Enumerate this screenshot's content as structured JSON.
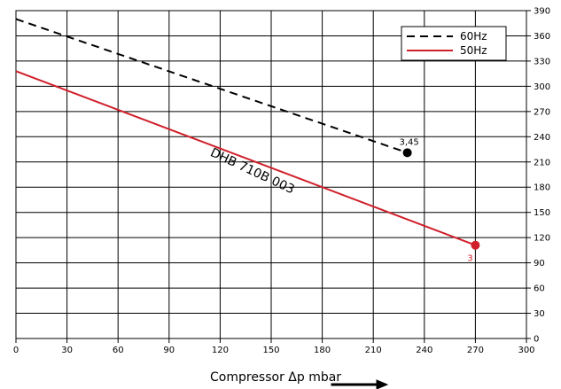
{
  "chart_data": {
    "type": "line",
    "title": "",
    "xlabel": "Compressor  Δp  mbar",
    "ylabel": "",
    "xlim": [
      0,
      300
    ],
    "ylim": [
      0,
      390
    ],
    "x_ticks": [
      0,
      30,
      60,
      90,
      120,
      150,
      180,
      210,
      240,
      270,
      300
    ],
    "y_ticks": [
      0,
      30,
      60,
      90,
      120,
      150,
      180,
      210,
      240,
      270,
      300,
      330,
      360,
      390
    ],
    "y_axis_side": "right",
    "grid": true,
    "legend_position": "top-right",
    "series": [
      {
        "name": "60Hz",
        "style": "dashed",
        "color": "#000000",
        "x": [
          0,
          230
        ],
        "y": [
          380,
          221
        ],
        "end_label": "3,45"
      },
      {
        "name": "50Hz",
        "style": "solid",
        "color": "#d0202a",
        "x": [
          0,
          270
        ],
        "y": [
          318,
          111
        ],
        "end_label": "3"
      }
    ],
    "annotations": [
      {
        "text": "DHB 710B 003",
        "x": 138,
        "y": 195,
        "rotation_deg": 25
      }
    ]
  }
}
